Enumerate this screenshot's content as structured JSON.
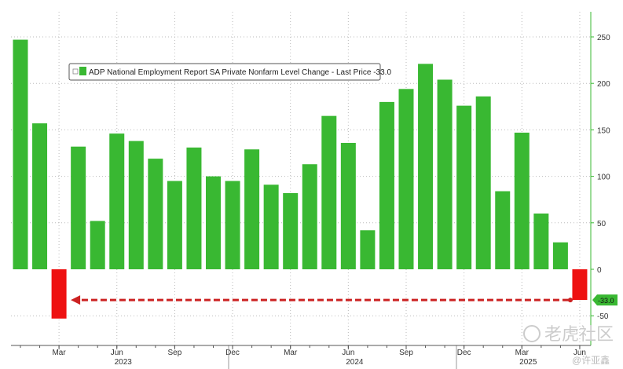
{
  "chart_data": {
    "type": "bar",
    "title": "",
    "legend": "ADP National Employment Report SA Private Nonfarm Level Change - Last Price -33.0",
    "legend_placement": "top-left",
    "last_value_label": "-33.0",
    "categories": [
      "Jan 2023",
      "Feb 2023",
      "Mar 2023",
      "Apr 2023",
      "May 2023",
      "Jun 2023",
      "Jul 2023",
      "Aug 2023",
      "Sep 2023",
      "Oct 2023",
      "Nov 2023",
      "Dec 2023",
      "Jan 2024",
      "Feb 2024",
      "Mar 2024",
      "Apr 2024",
      "May 2024",
      "Jun 2024",
      "Jul 2024",
      "Aug 2024",
      "Sep 2024",
      "Oct 2024",
      "Nov 2024",
      "Dec 2024",
      "Jan 2025",
      "Feb 2025",
      "Mar 2025",
      "Apr 2025",
      "May 2025",
      "Jun 2025"
    ],
    "values": [
      247,
      157,
      -53,
      132,
      52,
      146,
      138,
      119,
      95,
      131,
      100,
      95,
      129,
      91,
      82,
      113,
      165,
      136,
      42,
      180,
      194,
      221,
      204,
      176,
      186,
      84,
      147,
      60,
      29,
      -33
    ],
    "ylim": [
      -80,
      265
    ],
    "yticks": [
      250,
      200,
      150,
      100,
      50,
      0,
      -50
    ],
    "xtick_labels": [
      {
        "index": 2,
        "label": "Mar"
      },
      {
        "index": 5,
        "label": "Jun"
      },
      {
        "index": 8,
        "label": "Sep"
      },
      {
        "index": 11,
        "label": "Dec"
      },
      {
        "index": 14,
        "label": "Mar"
      },
      {
        "index": 17,
        "label": "Jun"
      },
      {
        "index": 20,
        "label": "Sep"
      },
      {
        "index": 23,
        "label": "Dec"
      },
      {
        "index": 26,
        "label": "Mar"
      },
      {
        "index": 29,
        "label": "Jun"
      }
    ],
    "year_labels": [
      {
        "index": 5,
        "label": "2023"
      },
      {
        "index": 17,
        "label": "2024"
      },
      {
        "index": 26,
        "label": "2025"
      }
    ],
    "yaxis_position": "right",
    "grid": true,
    "colors": {
      "positive": "#39b832",
      "negative": "#ee1111",
      "arrow": "#cc2222"
    }
  },
  "watermark": {
    "brand": "老虎社区",
    "author": "@许亚鑫"
  }
}
